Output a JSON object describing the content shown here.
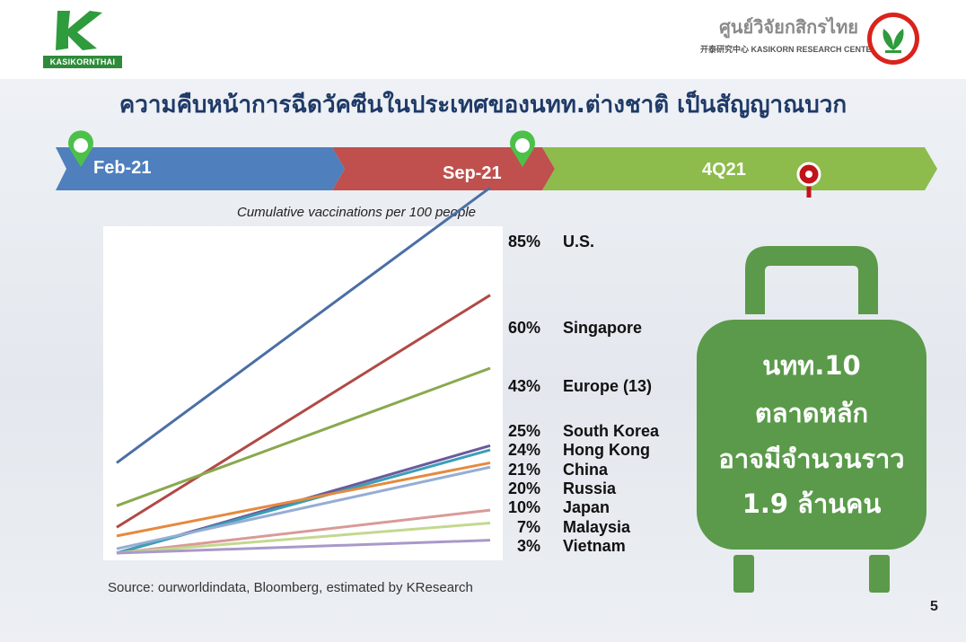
{
  "header": {
    "left_logo_text": "KASIKORNTHAI",
    "right_logo_thai": "ศูนย์วิจัยกสิกรไทย",
    "right_logo_eng": "开泰研究中心  KASIKORN RESEARCH CENTER"
  },
  "title": "ความคืบหน้าการฉีดวัคซีนในประเทศของนทท.ต่างชาติ เป็นสัญญาณบวก",
  "timeline": {
    "stages": [
      "Feb-21",
      "Sep-21",
      "4Q21"
    ],
    "colors": {
      "blue": "#4f7fbd",
      "red": "#c0504d",
      "green": "#8dbb4c",
      "pin": "#4cc14a",
      "marker": "#c0141a"
    }
  },
  "chart_subtitle": "Cumulative vaccinations per 100 people",
  "chart_data": {
    "type": "line",
    "subtitle": "Cumulative vaccinations per 100 people",
    "x": [
      "Feb-21",
      "Sep-21"
    ],
    "ylim": [
      0,
      90
    ],
    "grid": false,
    "series": [
      {
        "name": "U.S.",
        "label": "85%",
        "values": [
          21,
          85
        ],
        "color": "#4a6fa5"
      },
      {
        "name": "Singapore",
        "label": "60%",
        "values": [
          6,
          60
        ],
        "color": "#b04a47"
      },
      {
        "name": "Europe (13)",
        "label": "43%",
        "values": [
          11,
          43
        ],
        "color": "#8aa84e"
      },
      {
        "name": "South Korea",
        "label": "25%",
        "values": [
          0,
          25
        ],
        "color": "#6a5a9c"
      },
      {
        "name": "Hong Kong",
        "label": "24%",
        "values": [
          0,
          24
        ],
        "color": "#3a9fb6"
      },
      {
        "name": "China",
        "label": "21%",
        "values": [
          4,
          21
        ],
        "color": "#e58a3e"
      },
      {
        "name": "Russia",
        "label": "20%",
        "values": [
          1,
          20
        ],
        "color": "#96add4"
      },
      {
        "name": "Japan",
        "label": "10%",
        "values": [
          0,
          10
        ],
        "color": "#d99a98"
      },
      {
        "name": "Malaysia",
        "label": "7%",
        "values": [
          0,
          7
        ],
        "color": "#c3d88f"
      },
      {
        "name": "Vietnam",
        "label": "3%",
        "values": [
          0,
          3
        ],
        "color": "#a999c9"
      }
    ]
  },
  "source": "Source: ourworldindata, Bloomberg, estimated by KResearch",
  "callout": {
    "lines": [
      "นทท.10",
      "ตลาดหลัก",
      "อาจมีจำนวนราว",
      "1.9 ล้านคน"
    ],
    "color": "#5a9a4a"
  },
  "page_number": "5"
}
